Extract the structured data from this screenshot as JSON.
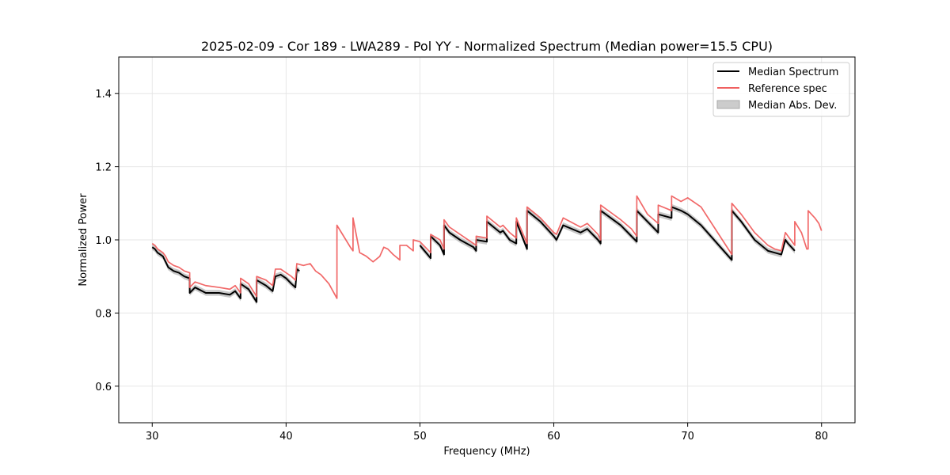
{
  "chart_data": {
    "type": "line",
    "title": "2025-02-09 - Cor 189 - LWA289 - Pol YY - Normalized Spectrum (Median power=15.5 CPU)",
    "xlabel": "Frequency (MHz)",
    "ylabel": "Normalized Power",
    "xlim": [
      27.5,
      82.5
    ],
    "ylim": [
      0.5,
      1.5
    ],
    "xticks": [
      30,
      40,
      50,
      60,
      70,
      80
    ],
    "xtick_labels": [
      "30",
      "40",
      "50",
      "60",
      "70",
      "80"
    ],
    "yticks": [
      0.6,
      0.8,
      1.0,
      1.2,
      1.4
    ],
    "ytick_labels": [
      "0.6",
      "0.8",
      "1.0",
      "1.2",
      "1.4"
    ],
    "grid": true,
    "legend_position": "top-right",
    "colors": {
      "median": "#000000",
      "reference": "#f06060",
      "mad": "#bbbbbb"
    },
    "series": [
      {
        "name": "Median Spectrum",
        "x": [
          30.0,
          30.2,
          30.4,
          30.6,
          30.8,
          31.0,
          31.2,
          31.6,
          32.0,
          32.4,
          32.8,
          32.8,
          33.2,
          34.0,
          35.0,
          35.8,
          36.2,
          36.6,
          36.6,
          37.2,
          37.8,
          37.8,
          38.5,
          39.0,
          39.2,
          39.6,
          40.0,
          40.4,
          40.7,
          40.8,
          41.0
        ],
        "values": [
          0.98,
          0.975,
          0.965,
          0.96,
          0.955,
          0.94,
          0.925,
          0.915,
          0.91,
          0.9,
          0.895,
          0.855,
          0.87,
          0.855,
          0.855,
          0.85,
          0.86,
          0.84,
          0.88,
          0.865,
          0.83,
          0.89,
          0.875,
          0.86,
          0.9,
          0.905,
          0.895,
          0.88,
          0.87,
          0.92,
          0.915
        ]
      },
      {
        "name": "Median Spectrum",
        "x": [
          50.0,
          50.8,
          50.8,
          51.5,
          51.8,
          51.8,
          52.2,
          53.0,
          54.0,
          54.2,
          54.2,
          55.0,
          55.0,
          56.0,
          56.2,
          56.7,
          57.2,
          57.2,
          58.0,
          58.0,
          59.0,
          60.0,
          60.2,
          60.7,
          62.0,
          62.5,
          63.3,
          63.5,
          63.5,
          65.0,
          65.8,
          66.2,
          66.2,
          67.0,
          67.8,
          67.8,
          68.8,
          68.8,
          69.5,
          70.0,
          71.0,
          73.3,
          73.3,
          74.0,
          75.0,
          76.0,
          76.5,
          77.0,
          77.3,
          77.5,
          78.0
        ],
        "values": [
          0.985,
          0.95,
          1.01,
          0.985,
          0.96,
          1.04,
          1.02,
          1.0,
          0.98,
          0.97,
          1.0,
          0.995,
          1.05,
          1.02,
          1.025,
          1.0,
          0.99,
          1.05,
          0.975,
          1.08,
          1.05,
          1.01,
          1.0,
          1.04,
          1.02,
          1.03,
          1.0,
          0.99,
          1.08,
          1.04,
          1.01,
          0.995,
          1.08,
          1.05,
          1.02,
          1.07,
          1.06,
          1.09,
          1.08,
          1.07,
          1.04,
          0.945,
          1.08,
          1.05,
          1.0,
          0.97,
          0.965,
          0.96,
          1.0,
          0.99,
          0.97
        ]
      },
      {
        "name": "Reference spec",
        "x": [
          30.0,
          30.2,
          30.4,
          30.6,
          30.8,
          31.0,
          31.2,
          31.6,
          32.0,
          32.4,
          32.8,
          32.8,
          33.2,
          34.0,
          35.0,
          35.8,
          36.2,
          36.6,
          36.6,
          37.2,
          37.8,
          37.8,
          38.5,
          39.0,
          39.2,
          39.6,
          40.0,
          40.4,
          40.7,
          40.8,
          41.3,
          41.8,
          42.2,
          42.6,
          43.2,
          43.8,
          43.8,
          44.3,
          44.8,
          45.0,
          45.0,
          45.5,
          46.0,
          46.5,
          47.0,
          47.3,
          47.6,
          48.0,
          48.5,
          48.5,
          49.0,
          49.5,
          49.5,
          50.0,
          50.8,
          50.8,
          51.5,
          51.8,
          51.8,
          52.2,
          53.0,
          54.0,
          54.2,
          54.2,
          55.0,
          55.0,
          56.0,
          56.2,
          56.7,
          57.2,
          57.2,
          58.0,
          58.0,
          59.0,
          60.0,
          60.2,
          60.7,
          62.0,
          62.5,
          63.3,
          63.5,
          63.5,
          65.0,
          65.8,
          66.2,
          66.2,
          67.0,
          67.8,
          67.8,
          68.8,
          68.8,
          69.5,
          70.0,
          71.0,
          73.3,
          73.3,
          74.0,
          75.0,
          76.0,
          76.5,
          77.0,
          77.3,
          77.6,
          77.8,
          78.0,
          78.0,
          78.5,
          78.9,
          79.0,
          79.0,
          79.5,
          79.8,
          80.0
        ],
        "values": [
          0.99,
          0.985,
          0.975,
          0.97,
          0.965,
          0.955,
          0.94,
          0.93,
          0.925,
          0.915,
          0.91,
          0.87,
          0.885,
          0.875,
          0.87,
          0.865,
          0.875,
          0.855,
          0.895,
          0.88,
          0.845,
          0.9,
          0.89,
          0.875,
          0.92,
          0.92,
          0.91,
          0.9,
          0.89,
          0.935,
          0.93,
          0.935,
          0.915,
          0.905,
          0.88,
          0.84,
          1.04,
          1.01,
          0.98,
          0.97,
          1.06,
          0.965,
          0.955,
          0.94,
          0.955,
          0.98,
          0.975,
          0.96,
          0.945,
          0.985,
          0.985,
          0.97,
          1.0,
          0.995,
          0.965,
          1.015,
          1.0,
          0.975,
          1.055,
          1.035,
          1.015,
          0.99,
          0.985,
          1.01,
          1.005,
          1.065,
          1.035,
          1.04,
          1.02,
          1.005,
          1.06,
          0.99,
          1.09,
          1.06,
          1.02,
          1.015,
          1.06,
          1.035,
          1.045,
          1.015,
          1.0,
          1.095,
          1.055,
          1.03,
          1.01,
          1.12,
          1.07,
          1.045,
          1.095,
          1.08,
          1.12,
          1.105,
          1.115,
          1.09,
          0.96,
          1.1,
          1.07,
          1.02,
          0.985,
          0.975,
          0.97,
          1.02,
          1.005,
          0.995,
          0.985,
          1.05,
          1.02,
          0.975,
          0.975,
          1.08,
          1.06,
          1.045,
          1.025
        ]
      }
    ],
    "legend": [
      {
        "label": "Median Spectrum",
        "kind": "line",
        "color": "#000000"
      },
      {
        "label": "Reference spec",
        "kind": "line",
        "color": "#f06060"
      },
      {
        "label": "Median Abs. Dev.",
        "kind": "patch",
        "color": "#bbbbbb"
      }
    ],
    "mad_halfwidth": 0.008
  }
}
